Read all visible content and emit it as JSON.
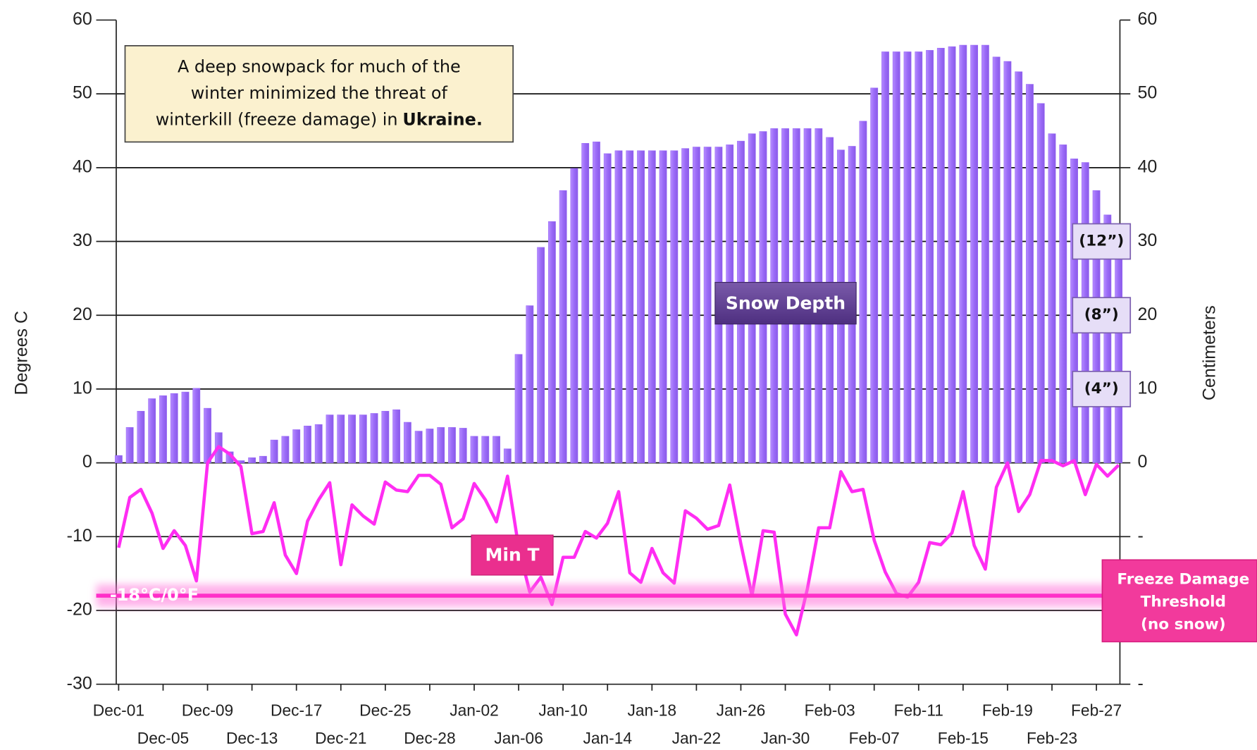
{
  "chart_data": {
    "type": "bar",
    "annotation": {
      "lines": [
        "A deep snowpack for much of the",
        "winter minimized the threat of",
        "winterkill (freeze damage) in"
      ],
      "emphasis": "Ukraine."
    },
    "ylabel": "Degrees C",
    "y2label": "Centimeters",
    "categories": [
      "Dec-01",
      null,
      null,
      null,
      "Dec-05",
      null,
      null,
      null,
      "Dec-09",
      null,
      null,
      null,
      "Dec-13",
      null,
      null,
      null,
      "Dec-17",
      null,
      null,
      null,
      "Dec-21",
      null,
      null,
      null,
      "Dec-25",
      null,
      null,
      null,
      "Dec-28",
      null,
      null,
      null,
      "Jan-02",
      null,
      null,
      null,
      "Jan-06",
      null,
      null,
      null,
      "Jan-10",
      null,
      null,
      null,
      "Jan-14",
      null,
      null,
      null,
      "Jan-18",
      null,
      null,
      null,
      "Jan-22",
      null,
      null,
      null,
      "Jan-26",
      null,
      null,
      null,
      "Jan-30",
      null,
      null,
      null,
      "Feb-03",
      null,
      null,
      null,
      "Feb-07",
      null,
      null,
      null,
      "Feb-11",
      null,
      null,
      null,
      "Feb-15",
      null,
      null,
      null,
      "Feb-19",
      null,
      null,
      null,
      "Feb-23",
      null,
      null,
      null,
      "Feb-27",
      null,
      null
    ],
    "series": [
      {
        "name": "Snow Depth",
        "type": "bar",
        "axis": "y2",
        "color": "#9a6af7",
        "values": [
          1,
          4.8,
          7,
          8.7,
          9.1,
          9.4,
          9.6,
          10.1,
          7.4,
          4.1,
          1.5,
          0.3,
          0.7,
          0.9,
          3.1,
          3.6,
          4.5,
          5,
          5.2,
          6.5,
          6.5,
          6.5,
          6.5,
          6.7,
          7,
          7.2,
          5.5,
          4.3,
          4.6,
          4.8,
          4.8,
          4.7,
          3.6,
          3.6,
          3.6,
          1.9,
          14.7,
          21.3,
          29.2,
          32.7,
          36.9,
          39.9,
          43.3,
          43.5,
          41.9,
          42.3,
          42.3,
          42.3,
          42.3,
          42.3,
          42.3,
          42.6,
          42.8,
          42.8,
          42.8,
          43.1,
          43.6,
          44.6,
          44.9,
          45.3,
          45.3,
          45.3,
          45.3,
          45.3,
          44.1,
          42.4,
          42.9,
          46.3,
          50.8,
          55.7,
          55.7,
          55.7,
          55.7,
          55.9,
          56.2,
          56.4,
          56.6,
          56.6,
          56.6,
          55,
          54.4,
          53,
          51.3,
          48.7,
          44.6,
          43.1,
          41.2,
          40.7,
          36.9,
          33.6,
          31
        ]
      },
      {
        "name": "Min T",
        "type": "line",
        "color": "#ff2df2",
        "values": [
          -11.5,
          -4.7,
          -3.6,
          -6.8,
          -11.6,
          -9.2,
          -11.2,
          -16,
          0,
          2.2,
          1.2,
          -0.5,
          -9.6,
          -9.3,
          -5.4,
          -12.5,
          -15,
          -7.9,
          -5,
          -2.7,
          -13.8,
          -5.7,
          -7.2,
          -8.3,
          -2.6,
          -3.7,
          -3.9,
          -1.7,
          -1.7,
          -2.9,
          -8.8,
          -7.6,
          -2.8,
          -5,
          -8,
          -1.8,
          -11.5,
          -17.5,
          -15.5,
          -19.2,
          -12.8,
          -12.8,
          -9.3,
          -10.2,
          -8.2,
          -3.9,
          -14.9,
          -16.2,
          -11.6,
          -14.9,
          -16.3,
          -6.5,
          -7.5,
          -9,
          -8.5,
          -3,
          -11,
          -18,
          -9.2,
          -9.4,
          -20.5,
          -23.3,
          -17,
          -8.8,
          -8.8,
          -1.2,
          -3.9,
          -3.6,
          -10.5,
          -14.8,
          -17.7,
          -18.2,
          -16.2,
          -10.8,
          -11.1,
          -9.5,
          -3.9,
          -11.2,
          -14.4,
          -3.3,
          0,
          -6.6,
          -4.3,
          0.3,
          0.3,
          -0.4,
          0.3,
          -4.3,
          -0.2,
          -1.8,
          -0.3
        ]
      }
    ],
    "ylim": [
      -30,
      60
    ],
    "yticks": [
      -30,
      -20,
      -10,
      0,
      10,
      20,
      30,
      40,
      50,
      60
    ],
    "y2lim": [
      -30,
      60
    ],
    "y2ticks": [
      {
        "value": -30,
        "label": "-"
      },
      {
        "value": -10,
        "label": "-"
      },
      0,
      10,
      20,
      30,
      40,
      50,
      60
    ],
    "grid": true,
    "threshold": {
      "value": -18,
      "label": "-18°C/0°F",
      "note": [
        "Freeze Damage",
        "Threshold",
        "(no snow)"
      ]
    },
    "inch_markers": [
      {
        "value": 30,
        "label": "(12”)"
      },
      {
        "value": 20,
        "label": "(8”)"
      },
      {
        "value": 10,
        "label": "(4”)"
      }
    ]
  }
}
